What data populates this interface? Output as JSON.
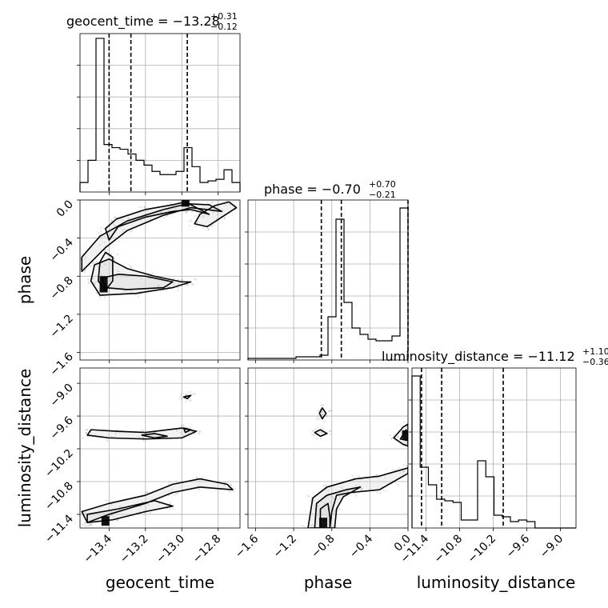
{
  "chart_data": {
    "type": "corner",
    "params": [
      {
        "name": "geocent_time",
        "xlabel": "geocent_time",
        "title_main": "geocent_time = −13.28",
        "title_sup": "+0.31",
        "title_sub": "−0.12",
        "range": [
          -13.56,
          -12.68
        ],
        "ticks": [
          -13.4,
          -13.2,
          -13.0,
          -12.8
        ],
        "tick_labels": [
          "−13.4",
          "−13.2",
          "−13.0",
          "−12.8"
        ],
        "quantiles": [
          -13.4,
          -13.28,
          -12.97
        ],
        "hist_edges": [
          -13.56,
          -12.68
        ],
        "hist_counts": [
          0.06,
          0.2,
          0.97,
          0.3,
          0.28,
          0.27,
          0.24,
          0.2,
          0.17,
          0.13,
          0.11,
          0.11,
          0.13,
          0.28,
          0.16,
          0.06,
          0.07,
          0.08,
          0.14,
          0.06
        ]
      },
      {
        "name": "phase",
        "ylabel": "phase",
        "xlabel": "phase",
        "title_main": "phase = −0.70",
        "title_sup": "+0.70",
        "title_sub": "−0.21",
        "range": [
          -1.68,
          0.0
        ],
        "ticks": [
          -1.6,
          -1.2,
          -0.8,
          -0.4,
          0.0
        ],
        "tick_labels": [
          "−1.6",
          "−1.2",
          "−0.8",
          "−0.4",
          "0.0"
        ],
        "quantiles": [
          -0.91,
          -0.7,
          0.0
        ],
        "hist_edges": [
          -1.68,
          0.0
        ],
        "hist_counts": [
          0.01,
          0.01,
          0.01,
          0.01,
          0.01,
          0.01,
          0.02,
          0.02,
          0.02,
          0.03,
          0.27,
          0.88,
          0.36,
          0.2,
          0.16,
          0.13,
          0.12,
          0.12,
          0.15,
          0.95
        ]
      },
      {
        "name": "luminosity_distance",
        "ylabel": "luminosity_distance",
        "xlabel": "luminosity_distance",
        "title_main": "luminosity_distance = −11.12",
        "title_sup": "+1.10",
        "title_sub": "−0.36",
        "range": [
          -11.65,
          -8.72
        ],
        "ticks": [
          -11.4,
          -10.8,
          -10.2,
          -9.6,
          -9.0
        ],
        "tick_labels": [
          "−11.4",
          "−10.8",
          "−10.2",
          "−9.6",
          "−9.0"
        ],
        "quantiles": [
          -11.48,
          -11.12,
          -10.02
        ],
        "hist_edges": [
          -11.65,
          -8.72
        ],
        "hist_counts": [
          0.95,
          0.38,
          0.27,
          0.18,
          0.17,
          0.16,
          0.05,
          0.05,
          0.42,
          0.32,
          0.08,
          0.07,
          0.04,
          0.05,
          0.04,
          0.0,
          0.0,
          0.0,
          0.0,
          0.0
        ]
      }
    ],
    "pairs": [
      {
        "x": "geocent_time",
        "y": "phase",
        "contours": [
          [
            [
              -13.42,
              -0.3
            ],
            [
              -13.36,
              -0.2
            ],
            [
              -13.2,
              -0.1
            ],
            [
              -13.05,
              -0.05
            ],
            [
              -12.98,
              -0.02
            ],
            [
              -12.9,
              -0.1
            ],
            [
              -12.85,
              -0.15
            ],
            [
              -12.95,
              -0.1
            ],
            [
              -13.05,
              -0.12
            ],
            [
              -13.2,
              -0.18
            ],
            [
              -13.35,
              -0.28
            ],
            [
              -13.4,
              -0.42
            ]
          ],
          [
            [
              -13.55,
              -0.6
            ],
            [
              -13.45,
              -0.38
            ],
            [
              -13.3,
              -0.22
            ],
            [
              -13.1,
              -0.1
            ],
            [
              -12.97,
              -0.04
            ],
            [
              -12.85,
              -0.05
            ],
            [
              -12.78,
              -0.12
            ],
            [
              -12.95,
              -0.08
            ],
            [
              -13.1,
              -0.16
            ],
            [
              -13.3,
              -0.32
            ],
            [
              -13.42,
              -0.5
            ],
            [
              -13.55,
              -0.75
            ]
          ],
          [
            [
              -13.44,
              -0.82
            ],
            [
              -13.35,
              -0.78
            ],
            [
              -13.2,
              -0.8
            ],
            [
              -13.05,
              -0.86
            ],
            [
              -13.1,
              -0.92
            ],
            [
              -13.3,
              -0.94
            ],
            [
              -13.42,
              -0.92
            ]
          ],
          [
            [
              -13.48,
              -0.68
            ],
            [
              -13.4,
              -0.62
            ],
            [
              -13.3,
              -0.72
            ],
            [
              -13.15,
              -0.8
            ],
            [
              -13.0,
              -0.86
            ],
            [
              -12.95,
              -0.86
            ],
            [
              -13.05,
              -0.92
            ],
            [
              -13.25,
              -0.98
            ],
            [
              -13.45,
              -1.0
            ],
            [
              -13.5,
              -0.85
            ]
          ],
          [
            [
              -13.42,
              -0.55
            ],
            [
              -13.38,
              -0.6
            ],
            [
              -13.38,
              -0.85
            ],
            [
              -13.42,
              -0.95
            ],
            [
              -13.46,
              -0.85
            ],
            [
              -13.45,
              -0.65
            ]
          ],
          [
            [
              -12.93,
              -0.25
            ],
            [
              -12.9,
              -0.15
            ],
            [
              -12.82,
              -0.06
            ],
            [
              -12.74,
              -0.02
            ],
            [
              -12.7,
              -0.08
            ],
            [
              -12.78,
              -0.18
            ],
            [
              -12.86,
              -0.28
            ]
          ]
        ],
        "dense_cells": [
          [
            -13.43,
            -0.92
          ],
          [
            -13.43,
            -0.85
          ],
          [
            -12.98,
            -0.02
          ]
        ]
      },
      {
        "x": "geocent_time",
        "y": "luminosity_distance",
        "contours": [
          [
            [
              -12.99,
              -9.25
            ],
            [
              -12.95,
              -9.22
            ],
            [
              -12.97,
              -9.28
            ]
          ],
          [
            [
              -13.22,
              -9.95
            ],
            [
              -13.15,
              -9.92
            ],
            [
              -13.08,
              -9.97
            ],
            [
              -13.15,
              -10.0
            ]
          ],
          [
            [
              -13.5,
              -9.85
            ],
            [
              -13.35,
              -9.88
            ],
            [
              -13.2,
              -9.9
            ],
            [
              -13.0,
              -9.82
            ],
            [
              -12.92,
              -9.88
            ],
            [
              -13.0,
              -10.0
            ],
            [
              -13.2,
              -10.02
            ],
            [
              -13.4,
              -10.0
            ],
            [
              -13.52,
              -9.95
            ]
          ],
          [
            [
              -12.99,
              -9.82
            ],
            [
              -12.95,
              -9.85
            ],
            [
              -12.98,
              -9.9
            ]
          ],
          [
            [
              -13.55,
              -11.35
            ],
            [
              -13.4,
              -11.2
            ],
            [
              -13.2,
              -11.05
            ],
            [
              -13.05,
              -10.85
            ],
            [
              -12.9,
              -10.75
            ],
            [
              -12.75,
              -10.85
            ],
            [
              -12.72,
              -10.95
            ],
            [
              -12.9,
              -10.9
            ],
            [
              -13.05,
              -11.0
            ],
            [
              -13.2,
              -11.2
            ],
            [
              -13.4,
              -11.4
            ],
            [
              -13.52,
              -11.55
            ]
          ],
          [
            [
              -13.52,
              -11.4
            ],
            [
              -13.35,
              -11.3
            ],
            [
              -13.15,
              -11.15
            ],
            [
              -13.05,
              -11.25
            ],
            [
              -13.2,
              -11.35
            ],
            [
              -13.38,
              -11.5
            ],
            [
              -13.52,
              -11.55
            ]
          ]
        ],
        "dense_cells": [
          [
            -13.42,
            -11.52
          ]
        ]
      },
      {
        "x": "phase",
        "y": "luminosity_distance",
        "contours": [
          [
            [
              -0.9,
              -9.45
            ],
            [
              -0.86,
              -9.55
            ],
            [
              -0.9,
              -9.65
            ],
            [
              -0.93,
              -9.55
            ]
          ],
          [
            [
              -0.98,
              -9.9
            ],
            [
              -0.92,
              -9.85
            ],
            [
              -0.85,
              -9.92
            ],
            [
              -0.92,
              -9.97
            ]
          ],
          [
            [
              -0.05,
              -10.12
            ],
            [
              -0.15,
              -10.0
            ],
            [
              -0.05,
              -9.8
            ],
            [
              0.0,
              -9.75
            ],
            [
              0.0,
              -10.15
            ]
          ],
          [
            [
              -0.08,
              -10.02
            ],
            [
              -0.02,
              -9.85
            ],
            [
              0.0,
              -9.95
            ],
            [
              0.0,
              -10.05
            ]
          ],
          [
            [
              -1.05,
              -11.65
            ],
            [
              -1.0,
              -11.1
            ],
            [
              -0.85,
              -10.9
            ],
            [
              -0.55,
              -10.75
            ],
            [
              -0.3,
              -10.7
            ],
            [
              -0.1,
              -10.6
            ],
            [
              0.0,
              -10.55
            ],
            [
              0.0,
              -10.65
            ],
            [
              -0.15,
              -10.8
            ],
            [
              -0.3,
              -10.95
            ],
            [
              -0.6,
              -11.0
            ],
            [
              -0.75,
              -11.05
            ],
            [
              -0.8,
              -11.35
            ],
            [
              -0.82,
              -11.65
            ]
          ],
          [
            [
              -0.98,
              -11.65
            ],
            [
              -0.96,
              -11.2
            ],
            [
              -0.85,
              -11.05
            ],
            [
              -0.65,
              -10.95
            ],
            [
              -0.5,
              -10.9
            ],
            [
              -0.68,
              -11.08
            ],
            [
              -0.75,
              -11.3
            ],
            [
              -0.77,
              -11.65
            ]
          ],
          [
            [
              -0.92,
              -11.65
            ],
            [
              -0.92,
              -11.3
            ],
            [
              -0.84,
              -11.2
            ],
            [
              -0.82,
              -11.45
            ],
            [
              -0.82,
              -11.65
            ]
          ]
        ],
        "dense_cells": [
          [
            -0.89,
            -11.55
          ],
          [
            -0.02,
            -9.95
          ]
        ]
      }
    ]
  }
}
